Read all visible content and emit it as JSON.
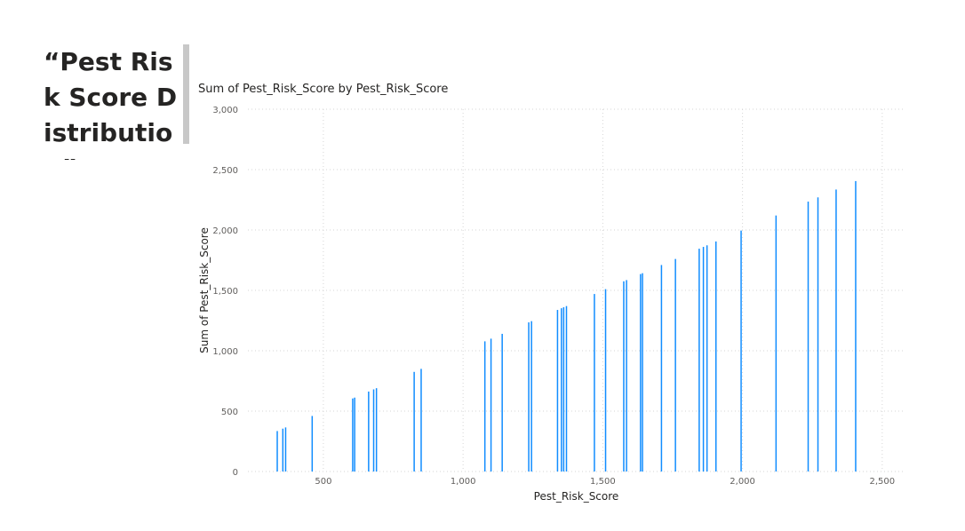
{
  "page": {
    "title": "“Pest Risk Score Distribution”"
  },
  "chart_data": {
    "type": "bar",
    "title": "Sum of Pest_Risk_Score by Pest_Risk_Score",
    "xlabel": "Pest_Risk_Score",
    "ylabel": "Sum of Pest_Risk_Score",
    "xlim": [
      230,
      2580
    ],
    "ylim": [
      0,
      3000
    ],
    "x_ticks": [
      500,
      1000,
      1500,
      2000,
      2500
    ],
    "x_tick_labels": [
      "500",
      "1,000",
      "1,500",
      "2,000",
      "2,500"
    ],
    "y_ticks": [
      0,
      500,
      1000,
      1500,
      2000,
      2500,
      3000
    ],
    "y_tick_labels": [
      "0",
      "500",
      "1,000",
      "1,500",
      "2,000",
      "2,500",
      "3,000"
    ],
    "grid": true,
    "color": "#118dff",
    "points": [
      {
        "x": 335,
        "y": 335
      },
      {
        "x": 355,
        "y": 355
      },
      {
        "x": 365,
        "y": 365
      },
      {
        "x": 460,
        "y": 460
      },
      {
        "x": 605,
        "y": 605
      },
      {
        "x": 612,
        "y": 612
      },
      {
        "x": 662,
        "y": 662
      },
      {
        "x": 680,
        "y": 680
      },
      {
        "x": 690,
        "y": 690
      },
      {
        "x": 825,
        "y": 825
      },
      {
        "x": 850,
        "y": 850
      },
      {
        "x": 1078,
        "y": 1078
      },
      {
        "x": 1100,
        "y": 1100
      },
      {
        "x": 1140,
        "y": 1140
      },
      {
        "x": 1235,
        "y": 1235
      },
      {
        "x": 1245,
        "y": 1245
      },
      {
        "x": 1338,
        "y": 1338
      },
      {
        "x": 1352,
        "y": 1352
      },
      {
        "x": 1360,
        "y": 1360
      },
      {
        "x": 1370,
        "y": 1370
      },
      {
        "x": 1470,
        "y": 1470
      },
      {
        "x": 1510,
        "y": 1510
      },
      {
        "x": 1575,
        "y": 1575
      },
      {
        "x": 1585,
        "y": 1585
      },
      {
        "x": 1635,
        "y": 1635
      },
      {
        "x": 1642,
        "y": 1642
      },
      {
        "x": 1710,
        "y": 1710
      },
      {
        "x": 1760,
        "y": 1760
      },
      {
        "x": 1845,
        "y": 1845
      },
      {
        "x": 1860,
        "y": 1860
      },
      {
        "x": 1873,
        "y": 1873
      },
      {
        "x": 1905,
        "y": 1905
      },
      {
        "x": 1995,
        "y": 1995
      },
      {
        "x": 2120,
        "y": 2120
      },
      {
        "x": 2235,
        "y": 2235
      },
      {
        "x": 2270,
        "y": 2270
      },
      {
        "x": 2335,
        "y": 2335
      },
      {
        "x": 2405,
        "y": 2405
      }
    ]
  }
}
